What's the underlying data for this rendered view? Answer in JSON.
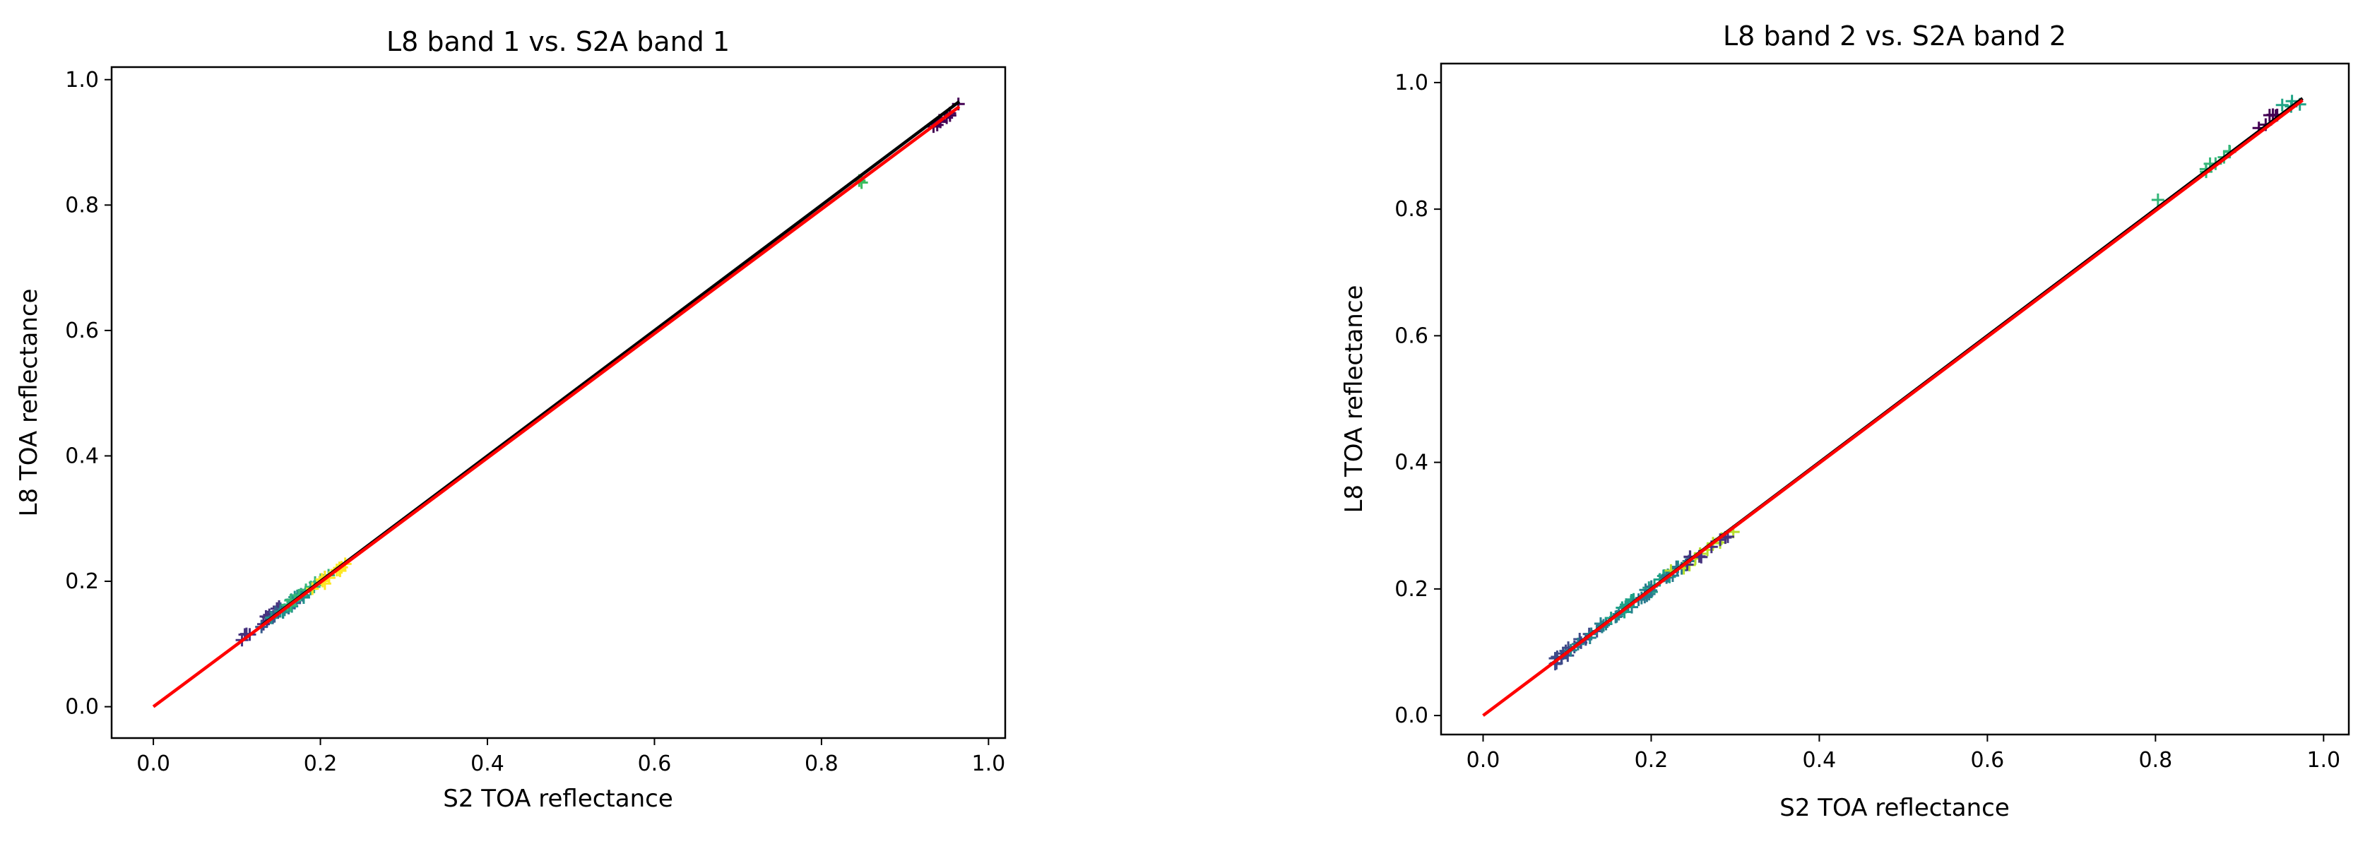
{
  "chart_data": [
    {
      "type": "scatter",
      "title": "L8 band 1 vs. S2A band 1",
      "xlabel": "S2 TOA reflectance",
      "ylabel": "L8 TOA reflectance",
      "xlim": [
        -0.05,
        1.02
      ],
      "ylim": [
        -0.05,
        1.02
      ],
      "xticks": [
        "0.0",
        "0.2",
        "0.4",
        "0.6",
        "0.8",
        "1.0"
      ],
      "yticks": [
        "0.0",
        "0.2",
        "0.4",
        "0.6",
        "0.8",
        "1.0"
      ],
      "grid": false,
      "clusters": [
        {
          "x": [
            0.1,
            0.155
          ],
          "y": [
            0.1,
            0.16
          ],
          "color": "#46327e",
          "n": 14
        },
        {
          "x": [
            0.12,
            0.18
          ],
          "y": [
            0.12,
            0.18
          ],
          "color": "#365c8d",
          "n": 14
        },
        {
          "x": [
            0.14,
            0.2
          ],
          "y": [
            0.14,
            0.2
          ],
          "color": "#21918c",
          "n": 14
        },
        {
          "x": [
            0.16,
            0.21
          ],
          "y": [
            0.16,
            0.21
          ],
          "color": "#35b779",
          "n": 12
        },
        {
          "x": [
            0.19,
            0.24
          ],
          "y": [
            0.19,
            0.23
          ],
          "color": "#fde725",
          "n": 12
        },
        {
          "x": [
            0.93,
            0.965
          ],
          "y": [
            0.92,
            0.96
          ],
          "color": "#440154",
          "n": 8
        },
        {
          "x": [
            0.84,
            0.85
          ],
          "y": [
            0.83,
            0.84
          ],
          "color": "#3bbd5e",
          "n": 2
        }
      ],
      "lines": [
        {
          "x": [
            0.13,
            0.965
          ],
          "y": [
            0.13,
            0.965
          ],
          "color": "#000000"
        },
        {
          "x": [
            0.0,
            0.965
          ],
          "y": [
            0.0,
            0.957
          ],
          "color": "#ff0000"
        }
      ]
    },
    {
      "type": "scatter",
      "title": "L8 band 2 vs. S2A band 2",
      "xlabel": "S2 TOA reflectance",
      "ylabel": "L8 TOA reflectance",
      "xlim": [
        -0.05,
        1.03
      ],
      "ylim": [
        -0.03,
        1.03
      ],
      "xticks": [
        "0.0",
        "0.2",
        "0.4",
        "0.6",
        "0.8",
        "1.0"
      ],
      "yticks": [
        "0.0",
        "0.2",
        "0.4",
        "0.6",
        "0.8",
        "1.0"
      ],
      "grid": false,
      "clusters": [
        {
          "x": [
            0.08,
            0.14
          ],
          "y": [
            0.08,
            0.14
          ],
          "color": "#3e4a89",
          "n": 16
        },
        {
          "x": [
            0.1,
            0.2
          ],
          "y": [
            0.1,
            0.2
          ],
          "color": "#26828e",
          "n": 18
        },
        {
          "x": [
            0.15,
            0.24
          ],
          "y": [
            0.15,
            0.24
          ],
          "color": "#1fa187",
          "n": 18
        },
        {
          "x": [
            0.18,
            0.26
          ],
          "y": [
            0.18,
            0.26
          ],
          "color": "#2a788e",
          "n": 14
        },
        {
          "x": [
            0.22,
            0.3
          ],
          "y": [
            0.22,
            0.29
          ],
          "color": "#b5de2b",
          "n": 10
        },
        {
          "x": [
            0.24,
            0.3
          ],
          "y": [
            0.24,
            0.29
          ],
          "color": "#46327e",
          "n": 8
        },
        {
          "x": [
            0.8,
            0.89
          ],
          "y": [
            0.81,
            0.89
          ],
          "color": "#35b779",
          "n": 8
        },
        {
          "x": [
            0.92,
            0.945
          ],
          "y": [
            0.93,
            0.95
          ],
          "color": "#440154",
          "n": 6
        },
        {
          "x": [
            0.95,
            0.98
          ],
          "y": [
            0.96,
            0.975
          ],
          "color": "#20a486",
          "n": 4
        }
      ],
      "lines": [
        {
          "x": [
            0.08,
            0.975
          ],
          "y": [
            0.08,
            0.975
          ],
          "color": "#000000"
        },
        {
          "x": [
            0.0,
            0.975
          ],
          "y": [
            0.0,
            0.972
          ],
          "color": "#ff0000"
        }
      ]
    }
  ]
}
